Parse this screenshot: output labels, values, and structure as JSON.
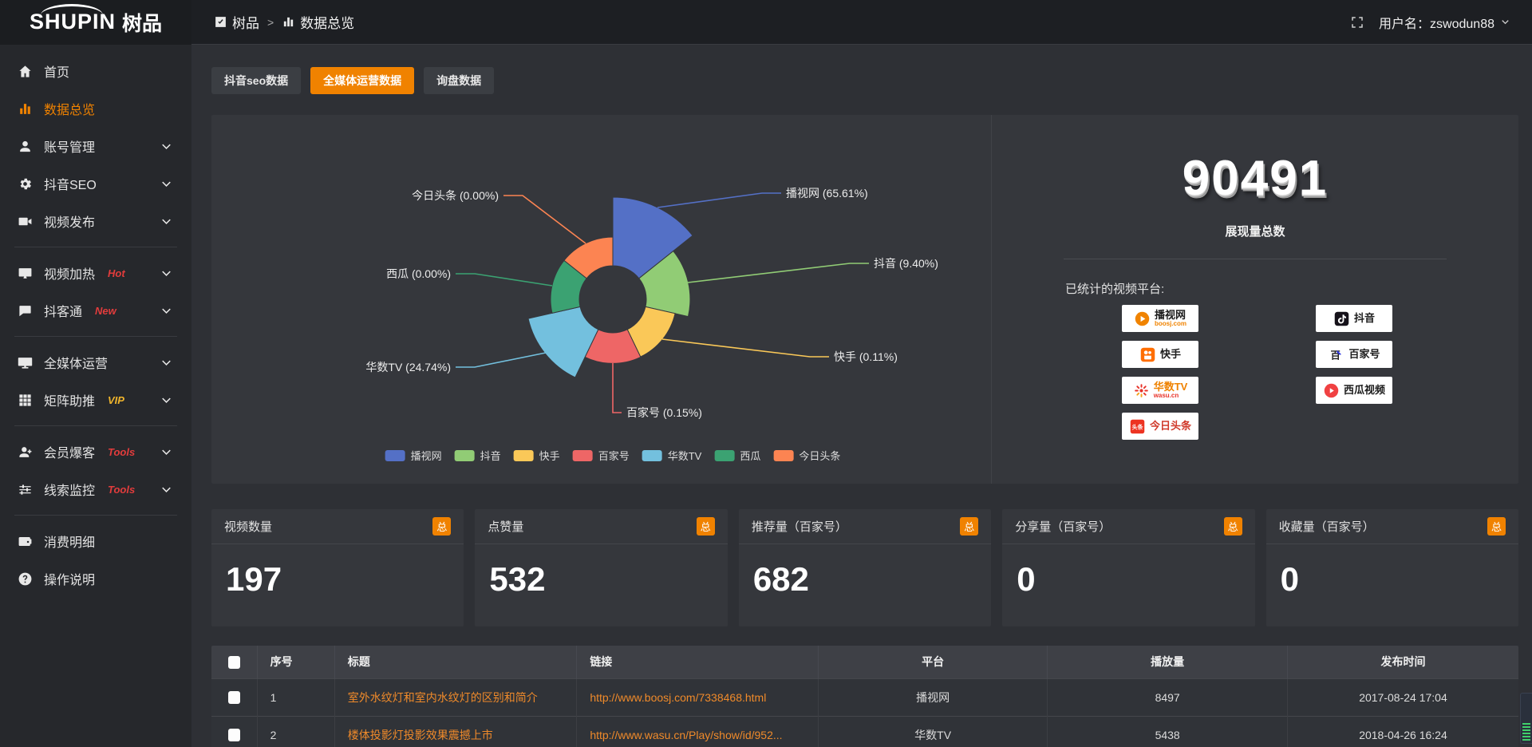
{
  "accent": "#f08200",
  "topbar": {
    "logo_en": "SHUPIN",
    "logo_cn": "树品",
    "breadcrumb": [
      {
        "label": "树品",
        "icon": "app-icon"
      },
      {
        "label": "数据总览",
        "icon": "bar-chart-icon"
      }
    ],
    "breadcrumb_separator": ">",
    "user_label": "用户名：zswodun88"
  },
  "sidebar": {
    "items": [
      {
        "key": "home",
        "label": "首页",
        "icon": "home-icon"
      },
      {
        "key": "data-overview",
        "label": "数据总览",
        "icon": "bar-chart-icon",
        "active": true
      },
      {
        "key": "account-manage",
        "label": "账号管理",
        "icon": "user-icon",
        "chevron": true
      },
      {
        "key": "douyin-seo",
        "label": "抖音SEO",
        "icon": "gear-icon",
        "chevron": true
      },
      {
        "key": "video-publish",
        "label": "视频发布",
        "icon": "video-icon",
        "chevron": true,
        "divider_after": true
      },
      {
        "key": "video-heat",
        "label": "视频加热",
        "icon": "screen-icon",
        "tag": "Hot",
        "tag_color": "#e23c3c",
        "chevron": true
      },
      {
        "key": "douketong",
        "label": "抖客通",
        "icon": "chat-icon",
        "tag": "New",
        "tag_color": "#e23c3c",
        "chevron": true,
        "divider_after": true
      },
      {
        "key": "media-operation",
        "label": "全媒体运营",
        "icon": "monitor-icon",
        "chevron": true
      },
      {
        "key": "matrix-boost",
        "label": "矩阵助推",
        "icon": "grid-icon",
        "tag": "VIP",
        "tag_color": "#f0b52c",
        "chevron": true,
        "divider_after": true
      },
      {
        "key": "member-baoke",
        "label": "会员爆客",
        "icon": "member-icon",
        "tag": "Tools",
        "tag_color": "#e23c3c",
        "chevron": true
      },
      {
        "key": "clue-monitor",
        "label": "线索监控",
        "icon": "sliders-icon",
        "tag": "Tools",
        "tag_color": "#e23c3c",
        "chevron": true,
        "divider_after": true
      },
      {
        "key": "consume-detail",
        "label": "消费明细",
        "icon": "wallet-icon"
      },
      {
        "key": "operation-guide",
        "label": "操作说明",
        "icon": "help-icon"
      }
    ]
  },
  "tabs": [
    {
      "key": "douyin-seo-data",
      "label": "抖音seo数据",
      "active": false
    },
    {
      "key": "media-operation-data",
      "label": "全媒体运营数据",
      "active": true
    },
    {
      "key": "inquiry-data",
      "label": "询盘数据",
      "active": false
    }
  ],
  "chart_data": {
    "type": "pie",
    "variant": "nightingale-rose",
    "unit": "percent-of-total-impressions",
    "items": [
      {
        "name": "播视网",
        "percent": 65.61,
        "color": "#5470c6"
      },
      {
        "name": "抖音",
        "percent": 9.4,
        "color": "#91cc75"
      },
      {
        "name": "快手",
        "percent": 0.11,
        "color": "#fac858"
      },
      {
        "name": "百家号",
        "percent": 0.15,
        "color": "#ee6666"
      },
      {
        "name": "华数TV",
        "percent": 24.74,
        "color": "#73c0de"
      },
      {
        "name": "西瓜",
        "percent": 0.0,
        "color": "#3ba272"
      },
      {
        "name": "今日头条",
        "percent": 0.0,
        "color": "#fc8452"
      }
    ],
    "label_format": "{name} ({percent}%)",
    "legend_position": "bottom",
    "legend": [
      "播视网",
      "抖音",
      "快手",
      "百家号",
      "华数TV",
      "西瓜",
      "今日头条"
    ]
  },
  "summary": {
    "total_value": "90491",
    "total_label": "展现量总数",
    "platforms_label": "已统计的视频平台:",
    "platform_columns": [
      [
        {
          "key": "boosj",
          "label": "播视网",
          "sub": "boosj.com",
          "sub_color": "#f08300",
          "icon": "boosj-logo-icon"
        },
        {
          "key": "kuaishou",
          "label": "快手",
          "icon": "kuaishou-logo-icon"
        },
        {
          "key": "wasu",
          "label": "华数TV",
          "label_color": "#ef8200",
          "sub": "wasu.cn",
          "sub_color": "#e8342a",
          "icon": "wasu-logo-icon"
        },
        {
          "key": "toutiao",
          "label": "今日头条",
          "label_color": "#d03a2b",
          "icon": "toutiao-logo-icon"
        }
      ],
      [
        {
          "key": "douyin",
          "label": "抖音",
          "icon": "douyin-logo-icon"
        },
        {
          "key": "baijiahao",
          "label": "百家号",
          "icon": "baijiahao-logo-icon"
        },
        {
          "key": "xigua",
          "label": "西瓜视频",
          "icon": "xigua-logo-icon"
        }
      ]
    ]
  },
  "stat_cards": [
    {
      "key": "video-count",
      "title": "视频数量",
      "badge": "总",
      "value": "197"
    },
    {
      "key": "like-count",
      "title": "点赞量",
      "badge": "总",
      "value": "532"
    },
    {
      "key": "recommend-count",
      "title": "推荐量（百家号）",
      "badge": "总",
      "value": "682"
    },
    {
      "key": "share-count",
      "title": "分享量（百家号）",
      "badge": "总",
      "value": "0"
    },
    {
      "key": "favorite-count",
      "title": "收藏量（百家号）",
      "badge": "总",
      "value": "0"
    }
  ],
  "table": {
    "headers": [
      "序号",
      "标题",
      "链接",
      "平台",
      "播放量",
      "发布时间"
    ],
    "rows": [
      {
        "index": "1",
        "title": "室外水纹灯和室内水纹灯的区别和简介",
        "link": "http://www.boosj.com/7338468.html",
        "platform": "播视网",
        "plays": "8497",
        "published": "2017-08-24 17:04"
      },
      {
        "index": "2",
        "title": "楼体投影灯投影效果震撼上市",
        "link": "http://www.wasu.cn/Play/show/id/952...",
        "platform": "华数TV",
        "plays": "5438",
        "published": "2018-04-26 16:24"
      }
    ]
  }
}
